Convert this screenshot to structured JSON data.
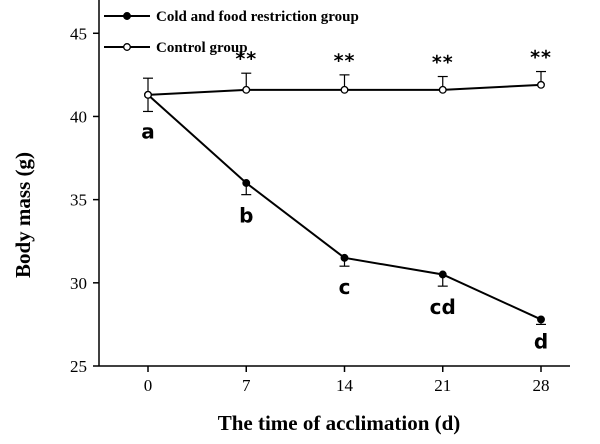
{
  "chart_data": {
    "type": "line",
    "xlabel": "The time of acclimation (d)",
    "ylabel": "Body mass (g)",
    "x": [
      0,
      7,
      14,
      21,
      28
    ],
    "ylim": [
      25,
      47
    ],
    "yticks": [
      25,
      30,
      35,
      40,
      45
    ],
    "grid": false,
    "legend_position": "top-left",
    "series": [
      {
        "name": "Cold and food restriction group",
        "marker": "filled-circle",
        "values": [
          41.3,
          36.0,
          31.5,
          30.5,
          27.8
        ],
        "errors": [
          1.0,
          0.7,
          0.5,
          0.7,
          0.3
        ],
        "labels": [
          "a",
          "b",
          "c",
          "cd",
          "d"
        ]
      },
      {
        "name": "Control group",
        "marker": "open-circle",
        "values": [
          41.3,
          41.6,
          41.6,
          41.6,
          41.9
        ],
        "errors": [
          1.0,
          1.0,
          0.9,
          0.8,
          0.8
        ],
        "annotations": [
          "",
          "**",
          "**",
          "**",
          "**"
        ]
      }
    ]
  }
}
